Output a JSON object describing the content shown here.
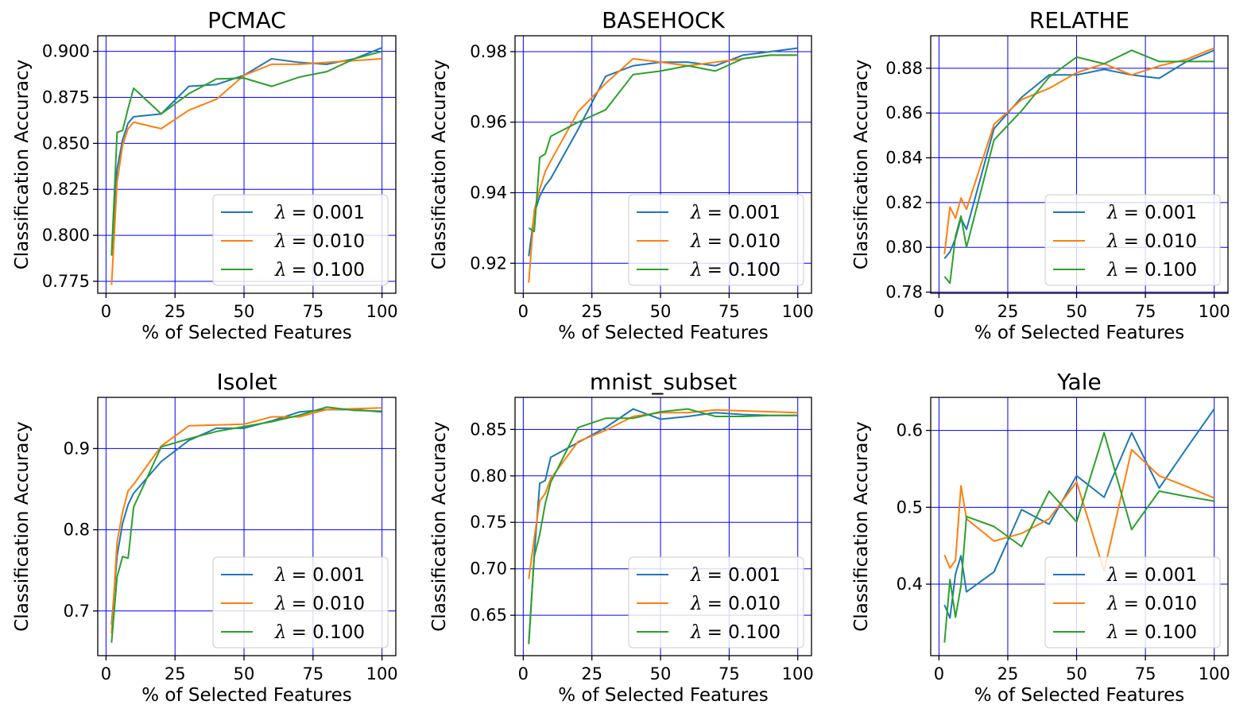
{
  "legend_location": "lower right",
  "grid_color": "#0000ff",
  "series_colors": [
    "#1f77b4",
    "#ff7f0e",
    "#2ca02c"
  ],
  "chart_data": [
    {
      "type": "line",
      "title": "PCMAC",
      "xlabel": "% of Selected Features",
      "ylabel": "Classification Accuracy",
      "xlim": [
        -3,
        105
      ],
      "ylim": [
        0.7685,
        0.9085
      ],
      "xticks": [
        0,
        25,
        50,
        75,
        100
      ],
      "xtick_labels": [
        "0",
        "25",
        "50",
        "75",
        "100"
      ],
      "yticks": [
        0.775,
        0.8,
        0.825,
        0.85,
        0.875,
        0.9
      ],
      "ytick_labels": [
        "0.775",
        "0.800",
        "0.825",
        "0.850",
        "0.875",
        "0.900"
      ],
      "series": [
        {
          "name": "λ = 0.001",
          "legend_symbol": "λ",
          "legend_value": "= 0.001",
          "x": [
            2,
            4,
            6,
            8,
            10,
            20,
            30,
            40,
            50,
            60,
            70,
            80,
            90,
            100
          ],
          "y": [
            0.789,
            0.836,
            0.852,
            0.861,
            0.8645,
            0.866,
            0.881,
            0.882,
            0.887,
            0.896,
            0.894,
            0.893,
            0.896,
            0.902
          ]
        },
        {
          "name": "λ = 0.010",
          "legend_symbol": "λ",
          "legend_value": "= 0.010",
          "x": [
            2,
            4,
            6,
            8,
            10,
            20,
            30,
            40,
            50,
            60,
            70,
            80,
            90,
            100
          ],
          "y": [
            0.773,
            0.829,
            0.849,
            0.858,
            0.8615,
            0.858,
            0.868,
            0.874,
            0.887,
            0.893,
            0.893,
            0.894,
            0.895,
            0.896
          ]
        },
        {
          "name": "λ = 0.100",
          "legend_symbol": "λ",
          "legend_value": "= 0.100",
          "x": [
            2,
            4,
            6,
            8,
            10,
            20,
            30,
            40,
            50,
            60,
            70,
            80,
            90,
            100
          ],
          "y": [
            0.789,
            0.856,
            0.857,
            0.869,
            0.88,
            0.866,
            0.877,
            0.885,
            0.8855,
            0.881,
            0.886,
            0.889,
            0.896,
            0.9
          ]
        }
      ]
    },
    {
      "type": "line",
      "title": "BASEHOCK",
      "xlabel": "% of Selected Features",
      "ylabel": "Classification Accuracy",
      "xlim": [
        -3,
        105
      ],
      "ylim": [
        0.9115,
        0.9845
      ],
      "xticks": [
        0,
        25,
        50,
        75,
        100
      ],
      "xtick_labels": [
        "0",
        "25",
        "50",
        "75",
        "100"
      ],
      "yticks": [
        0.92,
        0.94,
        0.96,
        0.98
      ],
      "ytick_labels": [
        "0.92",
        "0.94",
        "0.96",
        "0.98"
      ],
      "series": [
        {
          "name": "λ = 0.001",
          "legend_symbol": "λ",
          "legend_value": "= 0.001",
          "x": [
            2,
            4,
            6,
            8,
            10,
            20,
            30,
            40,
            50,
            60,
            70,
            80,
            90,
            100
          ],
          "y": [
            0.922,
            0.934,
            0.939,
            0.942,
            0.944,
            0.958,
            0.973,
            0.976,
            0.977,
            0.977,
            0.976,
            0.979,
            0.98,
            0.981
          ]
        },
        {
          "name": "λ = 0.010",
          "legend_symbol": "λ",
          "legend_value": "= 0.010",
          "x": [
            2,
            4,
            6,
            8,
            10,
            20,
            30,
            40,
            50,
            60,
            70,
            80,
            90,
            100
          ],
          "y": [
            0.9145,
            0.935,
            0.941,
            0.946,
            0.949,
            0.963,
            0.971,
            0.978,
            0.977,
            0.976,
            0.977,
            0.978,
            0.979,
            0.979
          ]
        },
        {
          "name": "λ = 0.100",
          "legend_symbol": "λ",
          "legend_value": "= 0.100",
          "x": [
            2,
            4,
            6,
            8,
            10,
            20,
            30,
            40,
            50,
            60,
            70,
            80,
            90,
            100
          ],
          "y": [
            0.93,
            0.929,
            0.95,
            0.951,
            0.956,
            0.96,
            0.9635,
            0.9735,
            0.9745,
            0.976,
            0.9745,
            0.978,
            0.979,
            0.979
          ]
        }
      ]
    },
    {
      "type": "line",
      "title": "RELATHE",
      "xlabel": "% of Selected Features",
      "ylabel": "Classification Accuracy",
      "xlim": [
        -3,
        105
      ],
      "ylim": [
        0.7795,
        0.8945
      ],
      "xticks": [
        0,
        25,
        50,
        75,
        100
      ],
      "xtick_labels": [
        "0",
        "25",
        "50",
        "75",
        "100"
      ],
      "yticks": [
        0.78,
        0.8,
        0.82,
        0.84,
        0.86,
        0.88
      ],
      "ytick_labels": [
        "0.78",
        "0.80",
        "0.82",
        "0.84",
        "0.86",
        "0.88"
      ],
      "series": [
        {
          "name": "λ = 0.001",
          "legend_symbol": "λ",
          "legend_value": "= 0.001",
          "x": [
            2,
            4,
            6,
            8,
            10,
            20,
            30,
            40,
            50,
            60,
            70,
            80,
            90,
            100
          ],
          "y": [
            0.795,
            0.798,
            0.804,
            0.813,
            0.808,
            0.853,
            0.867,
            0.877,
            0.877,
            0.8795,
            0.877,
            0.8755,
            0.883,
            0.888
          ]
        },
        {
          "name": "λ = 0.010",
          "legend_symbol": "λ",
          "legend_value": "= 0.010",
          "x": [
            2,
            4,
            6,
            8,
            10,
            20,
            30,
            40,
            50,
            60,
            70,
            80,
            90,
            100
          ],
          "y": [
            0.797,
            0.818,
            0.813,
            0.822,
            0.817,
            0.855,
            0.866,
            0.871,
            0.878,
            0.882,
            0.877,
            0.881,
            0.884,
            0.889
          ]
        },
        {
          "name": "λ = 0.100",
          "legend_symbol": "λ",
          "legend_value": "= 0.100",
          "x": [
            2,
            4,
            6,
            8,
            10,
            20,
            30,
            40,
            50,
            60,
            70,
            80,
            90,
            100
          ],
          "y": [
            0.787,
            0.784,
            0.805,
            0.814,
            0.8,
            0.848,
            0.861,
            0.876,
            0.885,
            0.882,
            0.888,
            0.883,
            0.883,
            0.883
          ]
        }
      ]
    },
    {
      "type": "line",
      "title": "Isolet",
      "xlabel": "% of Selected Features",
      "ylabel": "Classification Accuracy",
      "xlim": [
        -3,
        105
      ],
      "ylim": [
        0.645,
        0.963
      ],
      "xticks": [
        0,
        25,
        50,
        75,
        100
      ],
      "xtick_labels": [
        "0",
        "25",
        "50",
        "75",
        "100"
      ],
      "yticks": [
        0.7,
        0.8,
        0.9
      ],
      "ytick_labels": [
        "0.7",
        "0.8",
        "0.9"
      ],
      "series": [
        {
          "name": "λ = 0.001",
          "legend_symbol": "λ",
          "legend_value": "= 0.001",
          "x": [
            2,
            4,
            6,
            8,
            10,
            20,
            30,
            40,
            50,
            60,
            70,
            80,
            90,
            100
          ],
          "y": [
            0.683,
            0.768,
            0.808,
            0.831,
            0.845,
            0.884,
            0.91,
            0.925,
            0.925,
            0.934,
            0.945,
            0.948,
            0.948,
            0.945
          ]
        },
        {
          "name": "λ = 0.010",
          "legend_symbol": "λ",
          "legend_value": "= 0.010",
          "x": [
            2,
            4,
            6,
            8,
            10,
            20,
            30,
            40,
            50,
            60,
            70,
            80,
            90,
            100
          ],
          "y": [
            0.672,
            0.785,
            0.822,
            0.848,
            0.856,
            0.903,
            0.928,
            0.929,
            0.93,
            0.939,
            0.939,
            0.948,
            0.949,
            0.95
          ]
        },
        {
          "name": "λ = 0.100",
          "legend_symbol": "λ",
          "legend_value": "= 0.100",
          "x": [
            2,
            4,
            6,
            8,
            10,
            20,
            30,
            40,
            50,
            60,
            70,
            80,
            90,
            100
          ],
          "y": [
            0.661,
            0.742,
            0.767,
            0.765,
            0.828,
            0.902,
            0.912,
            0.921,
            0.927,
            0.933,
            0.941,
            0.951,
            0.947,
            0.946
          ]
        }
      ]
    },
    {
      "type": "line",
      "title": "mnist_subset",
      "xlabel": "% of Selected Features",
      "ylabel": "Classification Accuracy",
      "xlim": [
        -3,
        105
      ],
      "ylim": [
        0.6065,
        0.8845
      ],
      "xticks": [
        0,
        25,
        50,
        75,
        100
      ],
      "xtick_labels": [
        "0",
        "25",
        "50",
        "75",
        "100"
      ],
      "yticks": [
        0.65,
        0.7,
        0.75,
        0.8,
        0.85
      ],
      "ytick_labels": [
        "0.65",
        "0.70",
        "0.75",
        "0.80",
        "0.85"
      ],
      "series": [
        {
          "name": "λ = 0.001",
          "legend_symbol": "λ",
          "legend_value": "= 0.001",
          "x": [
            2,
            4,
            6,
            8,
            10,
            20,
            30,
            40,
            50,
            60,
            70,
            80,
            90,
            100
          ],
          "y": [
            0.62,
            0.715,
            0.792,
            0.795,
            0.82,
            0.836,
            0.852,
            0.872,
            0.861,
            0.864,
            0.868,
            0.866,
            0.865,
            0.865
          ]
        },
        {
          "name": "λ = 0.010",
          "legend_symbol": "λ",
          "legend_value": "= 0.010",
          "x": [
            2,
            4,
            6,
            8,
            10,
            20,
            30,
            40,
            50,
            60,
            70,
            80,
            90,
            100
          ],
          "y": [
            0.689,
            0.733,
            0.773,
            0.781,
            0.797,
            0.837,
            0.849,
            0.864,
            0.868,
            0.868,
            0.871,
            0.87,
            0.869,
            0.868
          ]
        },
        {
          "name": "λ = 0.100",
          "legend_symbol": "λ",
          "legend_value": "= 0.100",
          "x": [
            2,
            4,
            6,
            8,
            10,
            20,
            30,
            40,
            50,
            60,
            70,
            80,
            90,
            100
          ],
          "y": [
            0.619,
            0.713,
            0.737,
            0.77,
            0.793,
            0.852,
            0.862,
            0.862,
            0.869,
            0.872,
            0.864,
            0.864,
            0.865,
            0.865
          ]
        }
      ]
    },
    {
      "type": "line",
      "title": "Yale",
      "xlabel": "% of Selected Features",
      "ylabel": "Classification Accuracy",
      "xlim": [
        -3,
        105
      ],
      "ylim": [
        0.307,
        0.643
      ],
      "xticks": [
        0,
        25,
        50,
        75,
        100
      ],
      "xtick_labels": [
        "0",
        "25",
        "50",
        "75",
        "100"
      ],
      "yticks": [
        0.4,
        0.5,
        0.6
      ],
      "ytick_labels": [
        "0.4",
        "0.5",
        "0.6"
      ],
      "series": [
        {
          "name": "λ = 0.001",
          "legend_symbol": "λ",
          "legend_value": "= 0.001",
          "x": [
            2,
            4,
            6,
            8,
            10,
            20,
            30,
            40,
            50,
            60,
            70,
            80,
            90,
            100
          ],
          "y": [
            0.373,
            0.356,
            0.413,
            0.437,
            0.39,
            0.416,
            0.497,
            0.478,
            0.541,
            0.513,
            0.597,
            0.525,
            0.577,
            0.628
          ]
        },
        {
          "name": "λ = 0.010",
          "legend_symbol": "λ",
          "legend_value": "= 0.010",
          "x": [
            2,
            4,
            6,
            8,
            10,
            20,
            30,
            40,
            50,
            60,
            70,
            80,
            90,
            100
          ],
          "y": [
            0.438,
            0.421,
            0.431,
            0.528,
            0.485,
            0.456,
            0.466,
            0.485,
            0.533,
            0.417,
            0.575,
            0.541,
            0.527,
            0.512
          ]
        },
        {
          "name": "λ = 0.100",
          "legend_symbol": "λ",
          "legend_value": "= 0.100",
          "x": [
            2,
            4,
            6,
            8,
            10,
            20,
            30,
            40,
            50,
            60,
            70,
            80,
            90,
            100
          ],
          "y": [
            0.324,
            0.406,
            0.357,
            0.398,
            0.488,
            0.475,
            0.449,
            0.521,
            0.481,
            0.597,
            0.471,
            0.521,
            0.514,
            0.508
          ]
        }
      ]
    }
  ]
}
